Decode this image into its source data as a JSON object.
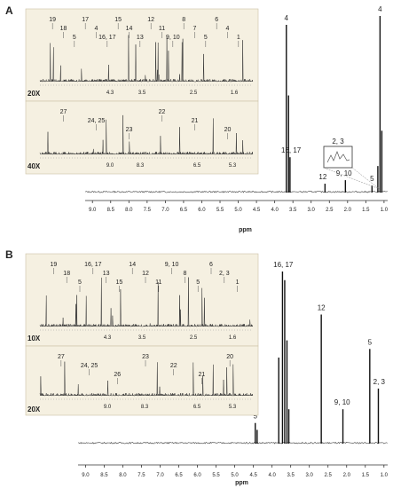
{
  "chart_data": [
    {
      "type": "line",
      "panel_label": "A",
      "xlabel": "ppm",
      "x_reversed": true,
      "xlim": [
        9.2,
        0.9
      ],
      "x_ticks": [
        "9.0",
        "8.5",
        "8.0",
        "7.5",
        "7.0",
        "6.5",
        "6.0",
        "5.5",
        "5.0",
        "4.5",
        "4.0",
        "3.5",
        "3.0",
        "2.5",
        "2.0",
        "1.5",
        "1.0"
      ],
      "peaks": [
        {
          "x": 3.68,
          "y": 0.95
        },
        {
          "x": 3.62,
          "y": 0.55
        },
        {
          "x": 3.58,
          "y": 0.2
        },
        {
          "x": 2.62,
          "y": 0.05
        },
        {
          "x": 2.06,
          "y": 0.07
        },
        {
          "x": 1.33,
          "y": 0.04
        },
        {
          "x": 1.17,
          "y": 0.15
        },
        {
          "x": 1.11,
          "y": 1.0
        },
        {
          "x": 1.06,
          "y": 0.35
        }
      ],
      "peak_labels": [
        {
          "text": "4",
          "x": 3.68
        },
        {
          "text": "4",
          "x": 1.11
        },
        {
          "text": "16, 17",
          "x": 3.55
        },
        {
          "text": "12",
          "x": 2.68
        },
        {
          "text": "9, 10",
          "x": 2.1
        },
        {
          "text": "5",
          "x": 1.33
        }
      ],
      "zoom_box_label": "2, 3",
      "insets": [
        {
          "magnification": "20X",
          "x_ticks": [
            "4.3",
            "3.5",
            "2.5",
            "1.6"
          ],
          "labels": [
            "19",
            "18",
            "5",
            "17",
            "4",
            "16, 17",
            "15",
            "14",
            "13",
            "12",
            "11",
            "9, 10",
            "8",
            "7",
            "5",
            "6",
            "4",
            "1"
          ]
        },
        {
          "magnification": "40X",
          "x_ticks": [
            "9.0",
            "8.3",
            "6.5",
            "5.3"
          ],
          "labels": [
            "27",
            "24, 25",
            "23",
            "22",
            "21",
            "20"
          ]
        }
      ]
    },
    {
      "type": "line",
      "panel_label": "B",
      "xlabel": "ppm",
      "x_reversed": true,
      "xlim": [
        9.2,
        0.9
      ],
      "x_ticks": [
        "9.0",
        "8.5",
        "8.0",
        "7.5",
        "7.0",
        "6.5",
        "6.0",
        "5.5",
        "5.0",
        "4.5",
        "4.0",
        "3.5",
        "3.0",
        "2.5",
        "2.0",
        "1.5",
        "1.0"
      ],
      "peaks": [
        {
          "x": 4.45,
          "y": 0.12
        },
        {
          "x": 4.4,
          "y": 0.08
        },
        {
          "x": 3.82,
          "y": 0.5
        },
        {
          "x": 3.72,
          "y": 1.0
        },
        {
          "x": 3.66,
          "y": 0.95
        },
        {
          "x": 3.6,
          "y": 0.6
        },
        {
          "x": 3.55,
          "y": 0.2
        },
        {
          "x": 2.68,
          "y": 0.75
        },
        {
          "x": 2.1,
          "y": 0.2
        },
        {
          "x": 1.38,
          "y": 0.55
        },
        {
          "x": 1.15,
          "y": 0.32
        }
      ],
      "peak_labels": [
        {
          "text": "16, 17",
          "x": 3.7
        },
        {
          "text": "12",
          "x": 2.68
        },
        {
          "text": "5",
          "x": 1.38
        },
        {
          "text": "2, 3",
          "x": 1.13
        },
        {
          "text": "9, 10",
          "x": 2.12
        },
        {
          "text": "5",
          "x": 4.45
        }
      ],
      "insets": [
        {
          "magnification": "10X",
          "x_ticks": [
            "4.3",
            "3.5",
            "2.5",
            "1.6"
          ],
          "labels": [
            "19",
            "18",
            "5",
            "16, 17",
            "13",
            "15",
            "14",
            "12",
            "11",
            "9, 10",
            "8",
            "5",
            "6",
            "2, 3",
            "1"
          ]
        },
        {
          "magnification": "20X",
          "x_ticks": [
            "9.0",
            "8.3",
            "6.5",
            "5.3"
          ],
          "labels": [
            "27",
            "24, 25",
            "26",
            "23",
            "22",
            "21",
            "20"
          ]
        }
      ]
    }
  ]
}
